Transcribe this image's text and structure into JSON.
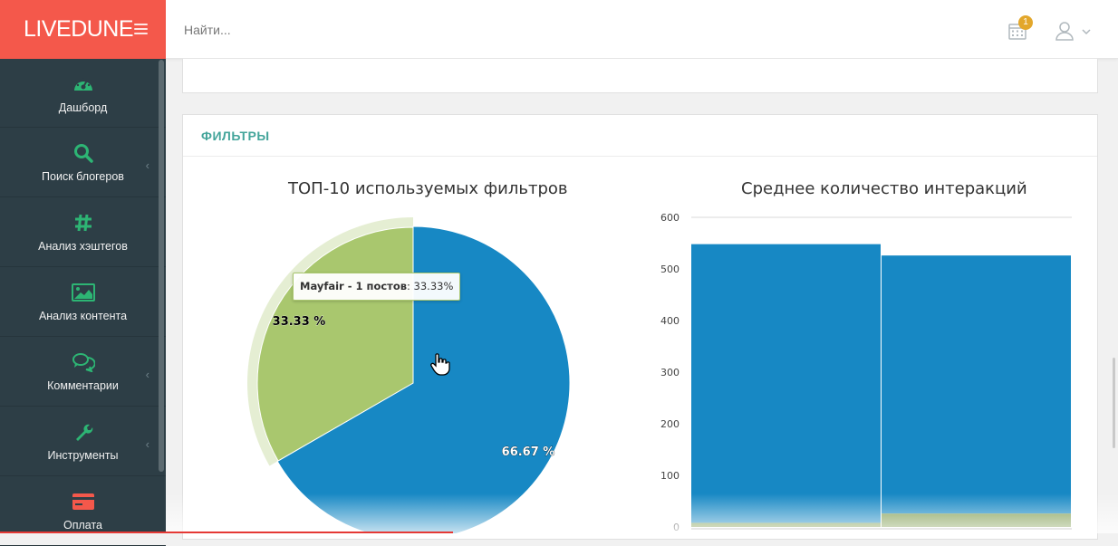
{
  "brand": {
    "name": "LIVEDUNE"
  },
  "search": {
    "placeholder": "Найти..."
  },
  "notifications": {
    "count": "1"
  },
  "sidebar": {
    "items": [
      {
        "label": "Дашборд",
        "icon": "dashboard-icon",
        "has_submenu": false
      },
      {
        "label": "Поиск блогеров",
        "icon": "search-icon",
        "has_submenu": true
      },
      {
        "label": "Анализ хэштегов",
        "icon": "hashtag-icon",
        "has_submenu": false
      },
      {
        "label": "Анализ контента",
        "icon": "image-icon",
        "has_submenu": false
      },
      {
        "label": "Комментарии",
        "icon": "comments-icon",
        "has_submenu": true
      },
      {
        "label": "Инструменты",
        "icon": "wrench-icon",
        "has_submenu": true
      },
      {
        "label": "Оплата",
        "icon": "credit-card-icon",
        "has_submenu": false
      }
    ]
  },
  "filters_panel": {
    "title": "ФИЛЬТРЫ"
  },
  "colors": {
    "accent": "#44a59b",
    "brand": "#f4584b",
    "blue": "#1788c4",
    "green": "#a9c76e",
    "dark_green": "#7c9a4c"
  },
  "chart_data": [
    {
      "type": "pie",
      "title": "ТОП-10 используемых фильтров",
      "slices": [
        {
          "name": "Mayfair",
          "value": 33.33,
          "label": "33.33 %",
          "color": "#a9c76e",
          "hovered": true
        },
        {
          "value": 66.67,
          "label": "66.67 %",
          "color": "#1788c4"
        }
      ],
      "tooltip": {
        "name": "Mayfair - 1 постов",
        "value": "33.33%"
      }
    },
    {
      "type": "bar",
      "title": "Среднее количество интеракций",
      "ylim": [
        0,
        600
      ],
      "yticks": [
        "600",
        "500",
        "400",
        "300",
        "200",
        "100",
        "0"
      ],
      "stacked": true,
      "bars": [
        {
          "blue": 540,
          "green": 8
        },
        {
          "blue": 500,
          "green": 26
        }
      ]
    }
  ]
}
